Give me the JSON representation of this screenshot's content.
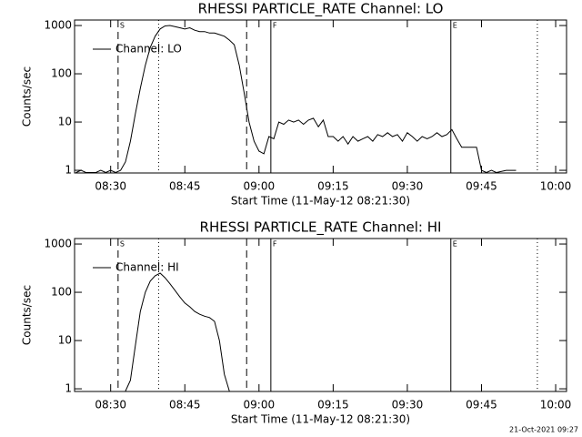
{
  "chart_data": [
    {
      "type": "line",
      "title": "RHESSI PARTICLE_RATE Channel: LO",
      "xlabel": "Start Time (11-May-12 08:21:30)",
      "ylabel": "Counts/sec",
      "log_y": true,
      "legend": "upper left",
      "xlim": [
        502.7,
        602.2
      ],
      "ylim": [
        0.88,
        1300
      ],
      "xticks": [
        {
          "value": 510,
          "label": "08:30"
        },
        {
          "value": 525,
          "label": "08:45"
        },
        {
          "value": 540,
          "label": "09:00"
        },
        {
          "value": 555,
          "label": "09:15"
        },
        {
          "value": 570,
          "label": "09:30"
        },
        {
          "value": 585,
          "label": "09:45"
        },
        {
          "value": 600,
          "label": "10:00"
        }
      ],
      "yticks": [
        1,
        10,
        100,
        1000
      ],
      "markers": [
        {
          "x": 511.5,
          "style": "dashed",
          "label": "S"
        },
        {
          "x": 519.7,
          "style": "dotted"
        },
        {
          "x": 537.5,
          "style": "dashed"
        },
        {
          "x": 542.4,
          "style": "solid",
          "label": "F"
        },
        {
          "x": 578.8,
          "style": "solid",
          "label": "E"
        },
        {
          "x": 596.3,
          "style": "dotted"
        }
      ],
      "x": [
        503,
        504,
        505,
        507,
        508,
        509,
        510,
        511,
        512,
        513,
        514,
        515,
        516,
        517,
        518,
        519,
        520,
        521,
        522,
        523,
        524,
        525,
        526,
        527,
        528,
        529,
        530,
        531,
        532,
        533,
        534,
        535,
        536,
        537,
        538,
        539,
        540,
        541,
        542,
        543,
        544,
        545,
        546,
        547,
        548,
        549,
        550,
        551,
        552,
        553,
        554,
        555,
        556,
        557,
        558,
        559,
        560,
        561,
        562,
        563,
        564,
        565,
        566,
        567,
        568,
        569,
        570,
        571,
        572,
        573,
        574,
        575,
        576,
        577,
        578,
        579,
        580,
        581,
        582,
        583,
        584,
        585,
        586,
        587,
        588,
        590,
        592
      ],
      "series": [
        {
          "name": "Channel: LO",
          "color": "#000000",
          "values": [
            0.9,
            1,
            0.9,
            0.9,
            1,
            0.9,
            1,
            0.9,
            1,
            1.5,
            4,
            15,
            50,
            150,
            350,
            600,
            850,
            980,
            1000,
            950,
            900,
            850,
            900,
            800,
            750,
            750,
            700,
            700,
            650,
            600,
            500,
            400,
            150,
            40,
            10,
            4,
            2.5,
            2.2,
            5,
            4.5,
            10,
            9,
            11,
            10,
            11,
            9,
            11,
            12,
            8,
            11,
            5,
            5,
            4,
            5,
            3.5,
            5,
            4,
            4.5,
            5,
            4,
            5.5,
            5,
            6,
            5,
            5.5,
            4,
            6,
            5,
            4,
            5,
            4.5,
            5,
            6,
            5,
            5.5,
            7,
            4.5,
            3,
            3,
            3,
            3,
            1,
            0.9,
            1,
            0.9,
            1,
            1
          ]
        }
      ]
    },
    {
      "type": "line",
      "title": "RHESSI PARTICLE_RATE Channel: HI",
      "xlabel": "Start Time (11-May-12 08:21:30)",
      "ylabel": "Counts/sec",
      "log_y": true,
      "legend": "upper left",
      "xlim": [
        502.7,
        602.2
      ],
      "ylim": [
        0.88,
        1300
      ],
      "xticks": [
        {
          "value": 510,
          "label": "08:30"
        },
        {
          "value": 525,
          "label": "08:45"
        },
        {
          "value": 540,
          "label": "09:00"
        },
        {
          "value": 555,
          "label": "09:15"
        },
        {
          "value": 570,
          "label": "09:30"
        },
        {
          "value": 585,
          "label": "09:45"
        },
        {
          "value": 600,
          "label": "10:00"
        }
      ],
      "yticks": [
        1,
        10,
        100,
        1000
      ],
      "markers": [
        {
          "x": 511.5,
          "style": "dashed",
          "label": "S"
        },
        {
          "x": 519.7,
          "style": "dotted"
        },
        {
          "x": 537.5,
          "style": "dashed"
        },
        {
          "x": 542.4,
          "style": "solid",
          "label": "F"
        },
        {
          "x": 578.8,
          "style": "solid",
          "label": "E"
        },
        {
          "x": 596.3,
          "style": "dotted"
        }
      ],
      "x": [
        513,
        514,
        515,
        516,
        517,
        518,
        519,
        520,
        521,
        522,
        523,
        524,
        525,
        526,
        527,
        528,
        529,
        530,
        531,
        532,
        533,
        534
      ],
      "series": [
        {
          "name": "Channel: HI",
          "color": "#000000",
          "values": [
            0.9,
            1.5,
            8,
            40,
            100,
            170,
            220,
            250,
            200,
            150,
            110,
            80,
            60,
            50,
            40,
            35,
            32,
            30,
            25,
            10,
            2,
            0.9
          ]
        }
      ]
    }
  ],
  "footer": "21-Oct-2021 09:27"
}
